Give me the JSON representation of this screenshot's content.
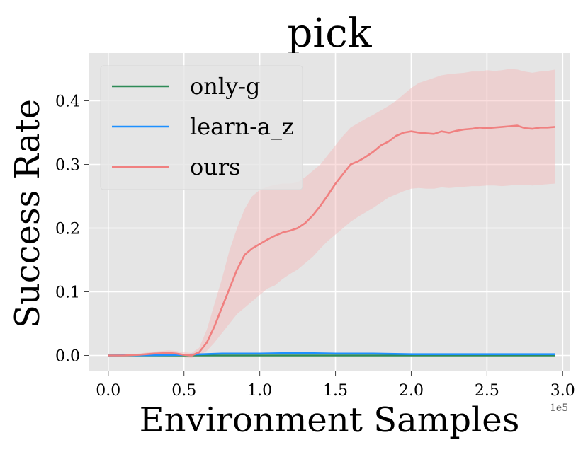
{
  "chart_data": {
    "type": "line",
    "title": "pick",
    "xlabel": "Environment Samples",
    "ylabel": "Success Rate",
    "x_offset_label": "1e5",
    "xlim": [
      -0.13,
      3.05
    ],
    "ylim": [
      -0.025,
      0.475
    ],
    "xticks": [
      0.0,
      0.5,
      1.0,
      1.5,
      2.0,
      2.5,
      3.0
    ],
    "xtick_labels": [
      "0.0",
      "0.5",
      "1.0",
      "1.5",
      "2.0",
      "2.5",
      "3.0"
    ],
    "yticks": [
      0.0,
      0.1,
      0.2,
      0.3,
      0.4
    ],
    "ytick_labels": [
      "0.0",
      "0.1",
      "0.2",
      "0.3",
      "0.4"
    ],
    "grid": true,
    "legend_position": "top-left",
    "background_color": "#e5e5e5",
    "series": [
      {
        "name": "only-g",
        "color": "#2e8b57",
        "x": [
          0.0,
          0.5,
          1.0,
          1.5,
          2.0,
          2.5,
          2.95
        ],
        "y": [
          0.0,
          0.0,
          0.0,
          0.0,
          0.0,
          0.0,
          0.0
        ]
      },
      {
        "name": "learn-a_z",
        "color": "#1e90ff",
        "x": [
          0.0,
          0.25,
          0.5,
          0.75,
          1.0,
          1.25,
          1.5,
          1.75,
          2.0,
          2.25,
          2.5,
          2.75,
          2.95
        ],
        "y": [
          0.0,
          0.0005,
          0.001,
          0.003,
          0.003,
          0.004,
          0.003,
          0.003,
          0.002,
          0.002,
          0.002,
          0.002,
          0.002
        ]
      },
      {
        "name": "ours",
        "color": "#f08080",
        "band_color": "#f4b6b6",
        "x": [
          0.0,
          0.1,
          0.2,
          0.3,
          0.4,
          0.45,
          0.5,
          0.55,
          0.6,
          0.65,
          0.7,
          0.75,
          0.8,
          0.85,
          0.9,
          0.95,
          1.0,
          1.05,
          1.1,
          1.15,
          1.2,
          1.25,
          1.3,
          1.35,
          1.4,
          1.45,
          1.5,
          1.55,
          1.6,
          1.65,
          1.7,
          1.75,
          1.8,
          1.85,
          1.9,
          1.95,
          2.0,
          2.05,
          2.1,
          2.15,
          2.2,
          2.25,
          2.3,
          2.35,
          2.4,
          2.45,
          2.5,
          2.55,
          2.6,
          2.65,
          2.7,
          2.75,
          2.8,
          2.85,
          2.9,
          2.95
        ],
        "y": [
          0.0,
          0.0,
          0.001,
          0.003,
          0.004,
          0.003,
          0.001,
          0.0,
          0.005,
          0.02,
          0.045,
          0.075,
          0.105,
          0.135,
          0.158,
          0.168,
          0.175,
          0.182,
          0.188,
          0.193,
          0.196,
          0.2,
          0.208,
          0.22,
          0.235,
          0.252,
          0.27,
          0.285,
          0.3,
          0.305,
          0.312,
          0.32,
          0.33,
          0.336,
          0.345,
          0.35,
          0.352,
          0.35,
          0.349,
          0.348,
          0.352,
          0.35,
          0.353,
          0.355,
          0.356,
          0.358,
          0.357,
          0.358,
          0.359,
          0.36,
          0.361,
          0.357,
          0.356,
          0.358,
          0.358,
          0.359
        ],
        "y_lower": [
          0.0,
          0.0,
          0.0,
          0.0,
          0.0,
          0.0,
          -0.003,
          -0.004,
          0.0,
          0.007,
          0.02,
          0.035,
          0.05,
          0.065,
          0.075,
          0.085,
          0.095,
          0.105,
          0.11,
          0.12,
          0.128,
          0.135,
          0.145,
          0.155,
          0.168,
          0.18,
          0.19,
          0.2,
          0.21,
          0.218,
          0.225,
          0.232,
          0.24,
          0.248,
          0.253,
          0.258,
          0.262,
          0.263,
          0.262,
          0.262,
          0.264,
          0.263,
          0.264,
          0.265,
          0.266,
          0.266,
          0.267,
          0.267,
          0.266,
          0.267,
          0.268,
          0.268,
          0.267,
          0.268,
          0.269,
          0.27
        ],
        "y_upper": [
          0.0,
          0.001,
          0.003,
          0.006,
          0.008,
          0.007,
          0.005,
          0.004,
          0.012,
          0.04,
          0.08,
          0.12,
          0.165,
          0.2,
          0.23,
          0.25,
          0.26,
          0.265,
          0.268,
          0.27,
          0.27,
          0.272,
          0.28,
          0.29,
          0.3,
          0.315,
          0.33,
          0.345,
          0.358,
          0.365,
          0.372,
          0.378,
          0.385,
          0.392,
          0.4,
          0.41,
          0.42,
          0.428,
          0.432,
          0.436,
          0.44,
          0.442,
          0.443,
          0.444,
          0.446,
          0.446,
          0.448,
          0.447,
          0.448,
          0.45,
          0.449,
          0.446,
          0.444,
          0.446,
          0.447,
          0.449
        ]
      }
    ]
  }
}
